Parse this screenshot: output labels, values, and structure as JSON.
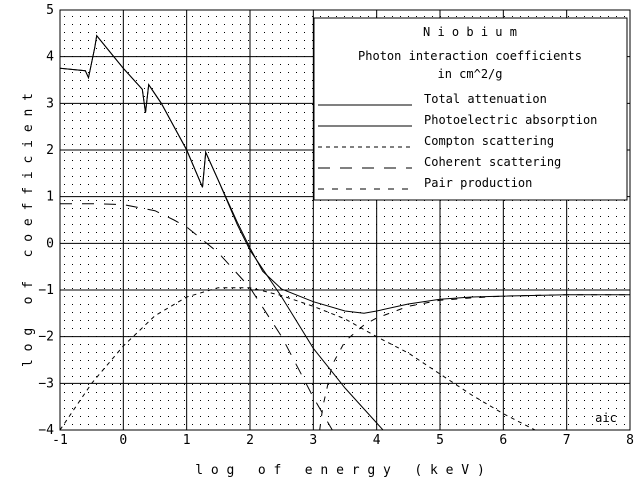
{
  "chart_data": {
    "type": "line",
    "title": "N i o b i u m",
    "subtitle_line1": "Photon interaction coefficients",
    "subtitle_line2": "in cm^2/g",
    "xlabel": "l o g   o f   e n e r g y   ( k e V )",
    "ylabel": "l o g   o f   c o e f f i c i e n t",
    "xlim": [
      -1,
      8
    ],
    "ylim": [
      -4,
      5
    ],
    "x_ticks": [
      -1,
      0,
      1,
      2,
      3,
      4,
      5,
      6,
      7,
      8
    ],
    "y_ticks": [
      -4,
      -3,
      -2,
      -1,
      0,
      1,
      2,
      3,
      4,
      5
    ],
    "x_tick_labels": [
      "-1",
      "0",
      "1",
      "2",
      "3",
      "4",
      "5",
      "6",
      "7",
      "8"
    ],
    "y_tick_labels": [
      "−4",
      "−3",
      "−2",
      "−1",
      "0",
      "1",
      "2",
      "3",
      "4",
      "5"
    ],
    "grid": true,
    "legend_position": "top-right",
    "annotation": "aic",
    "series": [
      {
        "name": "Total attenuation",
        "dash": "solid",
        "x": [
          -1,
          -0.6,
          -0.55,
          -0.45,
          -0.42,
          0,
          0.3,
          0.35,
          0.4,
          0.6,
          1.0,
          1.25,
          1.3,
          1.5,
          1.8,
          2.0,
          2.2,
          2.5,
          3.0,
          3.5,
          3.8,
          4.0,
          4.5,
          5.0,
          5.5,
          6.0,
          7.0,
          8.0
        ],
        "y": [
          3.75,
          3.7,
          3.55,
          4.2,
          4.45,
          3.75,
          3.3,
          2.8,
          3.4,
          3.0,
          2.0,
          1.2,
          1.95,
          1.35,
          0.45,
          -0.1,
          -0.6,
          -0.98,
          -1.25,
          -1.45,
          -1.5,
          -1.45,
          -1.3,
          -1.2,
          -1.15,
          -1.13,
          -1.1,
          -1.1
        ]
      },
      {
        "name": "Photoelectric absorption",
        "dash": "solid",
        "x": [
          -1,
          -0.6,
          -0.55,
          -0.45,
          -0.42,
          0,
          0.3,
          0.35,
          0.4,
          0.6,
          1.0,
          1.25,
          1.3,
          1.5,
          1.8,
          2.0,
          2.5,
          3.0,
          3.5,
          4.0,
          4.1
        ],
        "y": [
          3.75,
          3.7,
          3.55,
          4.2,
          4.45,
          3.75,
          3.3,
          2.8,
          3.4,
          3.0,
          2.0,
          1.2,
          1.95,
          1.35,
          0.4,
          -0.15,
          -1.15,
          -2.25,
          -3.1,
          -3.85,
          -4.0
        ]
      },
      {
        "name": "Compton scattering",
        "dash": "short",
        "x": [
          -1,
          -0.5,
          0,
          0.5,
          1.0,
          1.5,
          2.0,
          2.5,
          3.0,
          3.5,
          4.0,
          4.5,
          5.0,
          5.5,
          6.0,
          6.5
        ],
        "y": [
          -4.0,
          -3.0,
          -2.2,
          -1.55,
          -1.15,
          -0.95,
          -0.95,
          -1.12,
          -1.35,
          -1.62,
          -2.0,
          -2.35,
          -2.8,
          -3.25,
          -3.65,
          -4.0
        ]
      },
      {
        "name": "Coherent scattering",
        "dash": "long",
        "x": [
          -1,
          -0.5,
          0,
          0.5,
          0.8,
          1.0,
          1.5,
          2.0,
          2.5,
          3.0,
          3.3
        ],
        "y": [
          0.85,
          0.85,
          0.83,
          0.7,
          0.5,
          0.35,
          -0.2,
          -0.95,
          -2.0,
          -3.3,
          -4.0
        ]
      },
      {
        "name": "Pair production",
        "dash": "medium",
        "x": [
          3.1,
          3.15,
          3.3,
          3.5,
          3.8,
          4.0,
          4.5,
          5.0,
          5.5,
          6.0,
          7.0,
          8.0
        ],
        "y": [
          -4.0,
          -3.5,
          -2.6,
          -2.1,
          -1.75,
          -1.6,
          -1.35,
          -1.22,
          -1.17,
          -1.13,
          -1.1,
          -1.1
        ]
      }
    ]
  }
}
